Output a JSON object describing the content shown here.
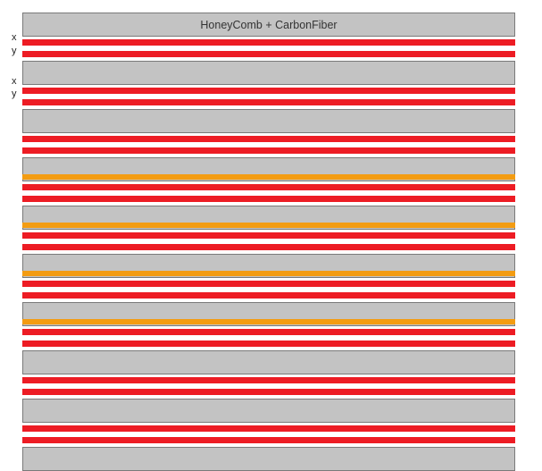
{
  "title": "HoneyComb + CarbonFiber",
  "axis_labels": [
    "x",
    "y",
    "x",
    "y"
  ],
  "colors": {
    "core": "#c3c3c3",
    "core_border": "#7a7a7a",
    "carbon_fiber": "#ed1c24",
    "orange_layer": "#f39c12"
  },
  "layers": [
    {
      "type": "core"
    },
    {
      "type": "red"
    },
    {
      "type": "red"
    },
    {
      "type": "core"
    },
    {
      "type": "red"
    },
    {
      "type": "red"
    },
    {
      "type": "core"
    },
    {
      "type": "red"
    },
    {
      "type": "red"
    },
    {
      "type": "core",
      "orange": true
    },
    {
      "type": "red"
    },
    {
      "type": "red"
    },
    {
      "type": "core",
      "orange": true
    },
    {
      "type": "red"
    },
    {
      "type": "red"
    },
    {
      "type": "core",
      "orange": true
    },
    {
      "type": "red"
    },
    {
      "type": "red"
    },
    {
      "type": "core",
      "orange": true
    },
    {
      "type": "red"
    },
    {
      "type": "red"
    },
    {
      "type": "core"
    },
    {
      "type": "red"
    },
    {
      "type": "red"
    },
    {
      "type": "core"
    },
    {
      "type": "red"
    },
    {
      "type": "red"
    },
    {
      "type": "core"
    }
  ]
}
